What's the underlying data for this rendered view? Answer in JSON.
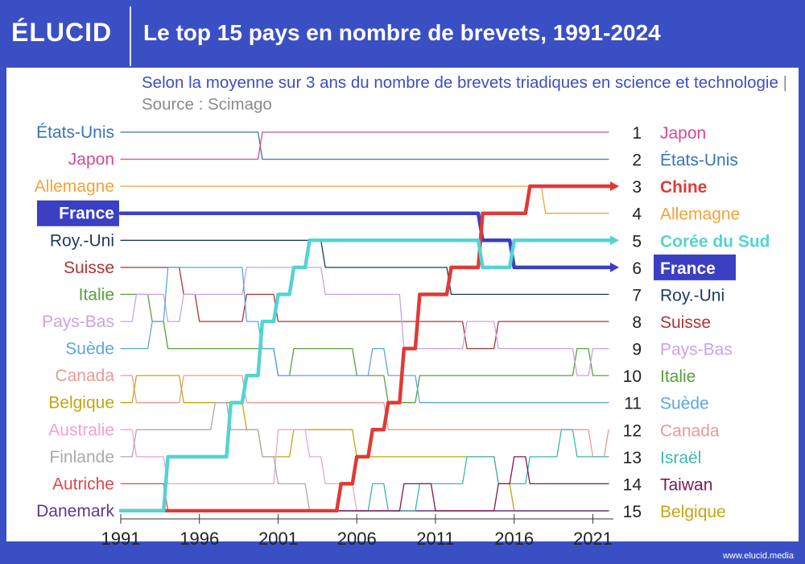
{
  "header": {
    "logo": "ÉLUCID",
    "title": "Le top 15 pays en nombre de brevets, 1991-2024"
  },
  "subtitle": {
    "text": "Selon la moyenne sur 3 ans du nombre de brevets triadiques en science et technologie",
    "separator": "|",
    "source": "Source : Scimago"
  },
  "footer": {
    "url": "www.elucid.media"
  },
  "colors": {
    "France": "#3b3fc2",
    "Chine": "#e03a35",
    "Corée du Sud": "#55d3d3",
    "Allemagne": "#f2a33a",
    "Japon": "#d84a92",
    "États-Unis": "#3a74b6",
    "Roy.-Uni": "#1e3a5f",
    "Suisse": "#b23333",
    "Italie": "#5aa03a",
    "Pays-Bas": "#c9a2e8",
    "Suède": "#5ba7de",
    "Canada": "#eb9a92",
    "Belgique": "#c2a612",
    "Australie": "#efa2d2",
    "Finlande": "#aaaaaa",
    "Autriche": "#e0484e",
    "Danemark": "#5a3a8a",
    "Israël": "#3fb6b0",
    "Taiwan": "#7d1a4f"
  },
  "chart_data": {
    "type": "line",
    "chart_kind": "bump",
    "x": [
      1991,
      1992,
      1993,
      1994,
      1995,
      1996,
      1997,
      1998,
      1999,
      2000,
      2001,
      2002,
      2003,
      2004,
      2005,
      2006,
      2007,
      2008,
      2009,
      2010,
      2011,
      2012,
      2013,
      2014,
      2015,
      2016,
      2017,
      2018,
      2019,
      2020,
      2021,
      2022
    ],
    "x_ticks": [
      1991,
      1996,
      2001,
      2006,
      2011,
      2016,
      2021
    ],
    "y_reversed": true,
    "ylim": [
      1,
      15
    ],
    "left_labels": [
      "États-Unis",
      "Japon",
      "Allemagne",
      "France",
      "Roy.-Uni",
      "Suisse",
      "Italie",
      "Pays-Bas",
      "Suède",
      "Canada",
      "Belgique",
      "Australie",
      "Finlande",
      "Autriche",
      "Danemark"
    ],
    "right_labels": [
      {
        "rank": "1",
        "name": "Japon"
      },
      {
        "rank": "2",
        "name": "États-Unis"
      },
      {
        "rank": "3",
        "name": "Chine"
      },
      {
        "rank": "4",
        "name": "Allemagne"
      },
      {
        "rank": "5",
        "name": "Corée du Sud"
      },
      {
        "rank": "6",
        "name": "France"
      },
      {
        "rank": "7",
        "name": "Roy.-Uni"
      },
      {
        "rank": "8",
        "name": "Suisse"
      },
      {
        "rank": "9",
        "name": "Pays-Bas"
      },
      {
        "rank": "10",
        "name": "Italie"
      },
      {
        "rank": "11",
        "name": "Suède"
      },
      {
        "rank": "12",
        "name": "Canada"
      },
      {
        "rank": "13",
        "name": "Israël"
      },
      {
        "rank": "14",
        "name": "Taiwan"
      },
      {
        "rank": "15",
        "name": "Belgique"
      }
    ],
    "highlighted": [
      "France",
      "Chine",
      "Corée du Sud"
    ],
    "series": [
      {
        "name": "États-Unis",
        "values": [
          1,
          1,
          1,
          1,
          1,
          1,
          1,
          1,
          1,
          2,
          2,
          2,
          2,
          2,
          2,
          2,
          2,
          2,
          2,
          2,
          2,
          2,
          2,
          2,
          2,
          2,
          2,
          2,
          2,
          2,
          2,
          2
        ]
      },
      {
        "name": "Japon",
        "values": [
          2,
          2,
          2,
          2,
          2,
          2,
          2,
          2,
          2,
          1,
          1,
          1,
          1,
          1,
          1,
          1,
          1,
          1,
          1,
          1,
          1,
          1,
          1,
          1,
          1,
          1,
          1,
          1,
          1,
          1,
          1,
          1
        ]
      },
      {
        "name": "Allemagne",
        "values": [
          3,
          3,
          3,
          3,
          3,
          3,
          3,
          3,
          3,
          3,
          3,
          3,
          3,
          3,
          3,
          3,
          3,
          3,
          3,
          3,
          3,
          3,
          3,
          3,
          3,
          3,
          3,
          4,
          4,
          4,
          4,
          4
        ]
      },
      {
        "name": "France",
        "values": [
          4,
          4,
          4,
          4,
          4,
          4,
          4,
          4,
          4,
          4,
          4,
          4,
          4,
          4,
          4,
          4,
          4,
          4,
          4,
          4,
          4,
          4,
          4,
          5,
          5,
          6,
          6,
          6,
          6,
          6,
          6,
          6
        ]
      },
      {
        "name": "Roy.-Uni",
        "values": [
          5,
          5,
          5,
          5,
          5,
          5,
          5,
          5,
          5,
          5,
          5,
          5,
          5,
          6,
          6,
          6,
          6,
          6,
          6,
          6,
          6,
          7,
          7,
          7,
          7,
          7,
          7,
          7,
          7,
          7,
          7,
          7
        ]
      },
      {
        "name": "Suisse",
        "values": [
          6,
          6,
          6,
          6,
          7,
          8,
          8,
          8,
          7,
          7,
          8,
          8,
          8,
          8,
          8,
          8,
          8,
          8,
          8,
          8,
          8,
          8,
          9,
          9,
          8,
          8,
          8,
          8,
          8,
          8,
          8,
          8
        ]
      },
      {
        "name": "Italie",
        "values": [
          7,
          7,
          8,
          9,
          9,
          9,
          9,
          9,
          9,
          9,
          10,
          9,
          9,
          9,
          9,
          10,
          10,
          11,
          11,
          10,
          10,
          10,
          10,
          10,
          10,
          10,
          10,
          10,
          10,
          9,
          10,
          10
        ]
      },
      {
        "name": "Pays-Bas",
        "values": [
          8,
          7,
          7,
          8,
          7,
          7,
          7,
          7,
          6,
          6,
          6,
          6,
          6,
          7,
          7,
          7,
          7,
          7,
          9,
          9,
          9,
          9,
          8,
          8,
          9,
          9,
          9,
          9,
          9,
          10,
          9,
          9
        ]
      },
      {
        "name": "Suède",
        "values": [
          9,
          9,
          8,
          6,
          6,
          6,
          6,
          6,
          8,
          9,
          10,
          10,
          10,
          10,
          10,
          10,
          9,
          10,
          10,
          11,
          11,
          11,
          11,
          11,
          11,
          11,
          11,
          11,
          11,
          11,
          11,
          11
        ]
      },
      {
        "name": "Canada",
        "values": [
          10,
          11,
          11,
          11,
          10,
          10,
          10,
          10,
          11,
          11,
          11,
          11,
          11,
          11,
          11,
          11,
          11,
          12,
          12,
          12,
          12,
          12,
          12,
          12,
          12,
          12,
          12,
          12,
          12,
          12,
          13,
          12
        ]
      },
      {
        "name": "Belgique",
        "values": [
          11,
          10,
          10,
          10,
          11,
          11,
          11,
          11,
          12,
          13,
          13,
          12,
          12,
          12,
          12,
          13,
          13,
          13,
          13,
          13,
          13,
          13,
          13,
          13,
          14,
          15,
          15,
          15,
          15,
          15,
          15,
          15
        ]
      },
      {
        "name": "Australie",
        "values": [
          12,
          13,
          13,
          14,
          14,
          14,
          14,
          14,
          14,
          14,
          12,
          12,
          13,
          14,
          14,
          15,
          15,
          15,
          15,
          15,
          15,
          15,
          15,
          15,
          15,
          15,
          15,
          15,
          15,
          15,
          15,
          15
        ]
      },
      {
        "name": "Finlande",
        "values": [
          13,
          12,
          12,
          12,
          12,
          12,
          11,
          12,
          12,
          13,
          14,
          14,
          15,
          15,
          15,
          15,
          15,
          15,
          15,
          15,
          15,
          15,
          15,
          15,
          15,
          15,
          15,
          15,
          15,
          15,
          15,
          15
        ]
      },
      {
        "name": "Autriche",
        "values": [
          14,
          14,
          14,
          15,
          15,
          15,
          15,
          15,
          15,
          15,
          15,
          15,
          15,
          15,
          15,
          15,
          15,
          15,
          15,
          15,
          15,
          15,
          15,
          15,
          15,
          15,
          15,
          15,
          15,
          15,
          15,
          15
        ]
      },
      {
        "name": "Danemark",
        "values": [
          15,
          15,
          15,
          15,
          15,
          15,
          15,
          15,
          15,
          15,
          15,
          15,
          15,
          15,
          15,
          15,
          15,
          15,
          15,
          15,
          15,
          15,
          15,
          15,
          15,
          15,
          15,
          15,
          15,
          15,
          15,
          15
        ]
      },
      {
        "name": "Chine",
        "values": [
          15,
          15,
          15,
          15,
          15,
          15,
          15,
          15,
          15,
          15,
          15,
          15,
          15,
          15,
          14,
          13,
          12,
          11,
          9,
          7,
          7,
          6,
          6,
          4,
          4,
          4,
          3,
          3,
          3,
          3,
          3,
          3
        ]
      },
      {
        "name": "Corée du Sud",
        "values": [
          15,
          15,
          15,
          13,
          13,
          13,
          13,
          11,
          10,
          8,
          7,
          6,
          5,
          5,
          5,
          5,
          5,
          5,
          5,
          5,
          5,
          5,
          5,
          6,
          6,
          5,
          5,
          5,
          5,
          5,
          5,
          5
        ]
      },
      {
        "name": "Israël",
        "values": [
          15,
          15,
          15,
          15,
          15,
          15,
          15,
          15,
          15,
          15,
          15,
          15,
          15,
          15,
          15,
          15,
          14,
          15,
          15,
          14,
          14,
          14,
          13,
          13,
          14,
          14,
          13,
          13,
          12,
          13,
          13,
          13
        ]
      },
      {
        "name": "Taiwan",
        "values": [
          15,
          15,
          15,
          15,
          15,
          15,
          15,
          15,
          15,
          15,
          15,
          15,
          15,
          15,
          15,
          15,
          15,
          15,
          14,
          14,
          15,
          15,
          15,
          15,
          14,
          13,
          14,
          14,
          14,
          14,
          14,
          14
        ]
      }
    ]
  }
}
